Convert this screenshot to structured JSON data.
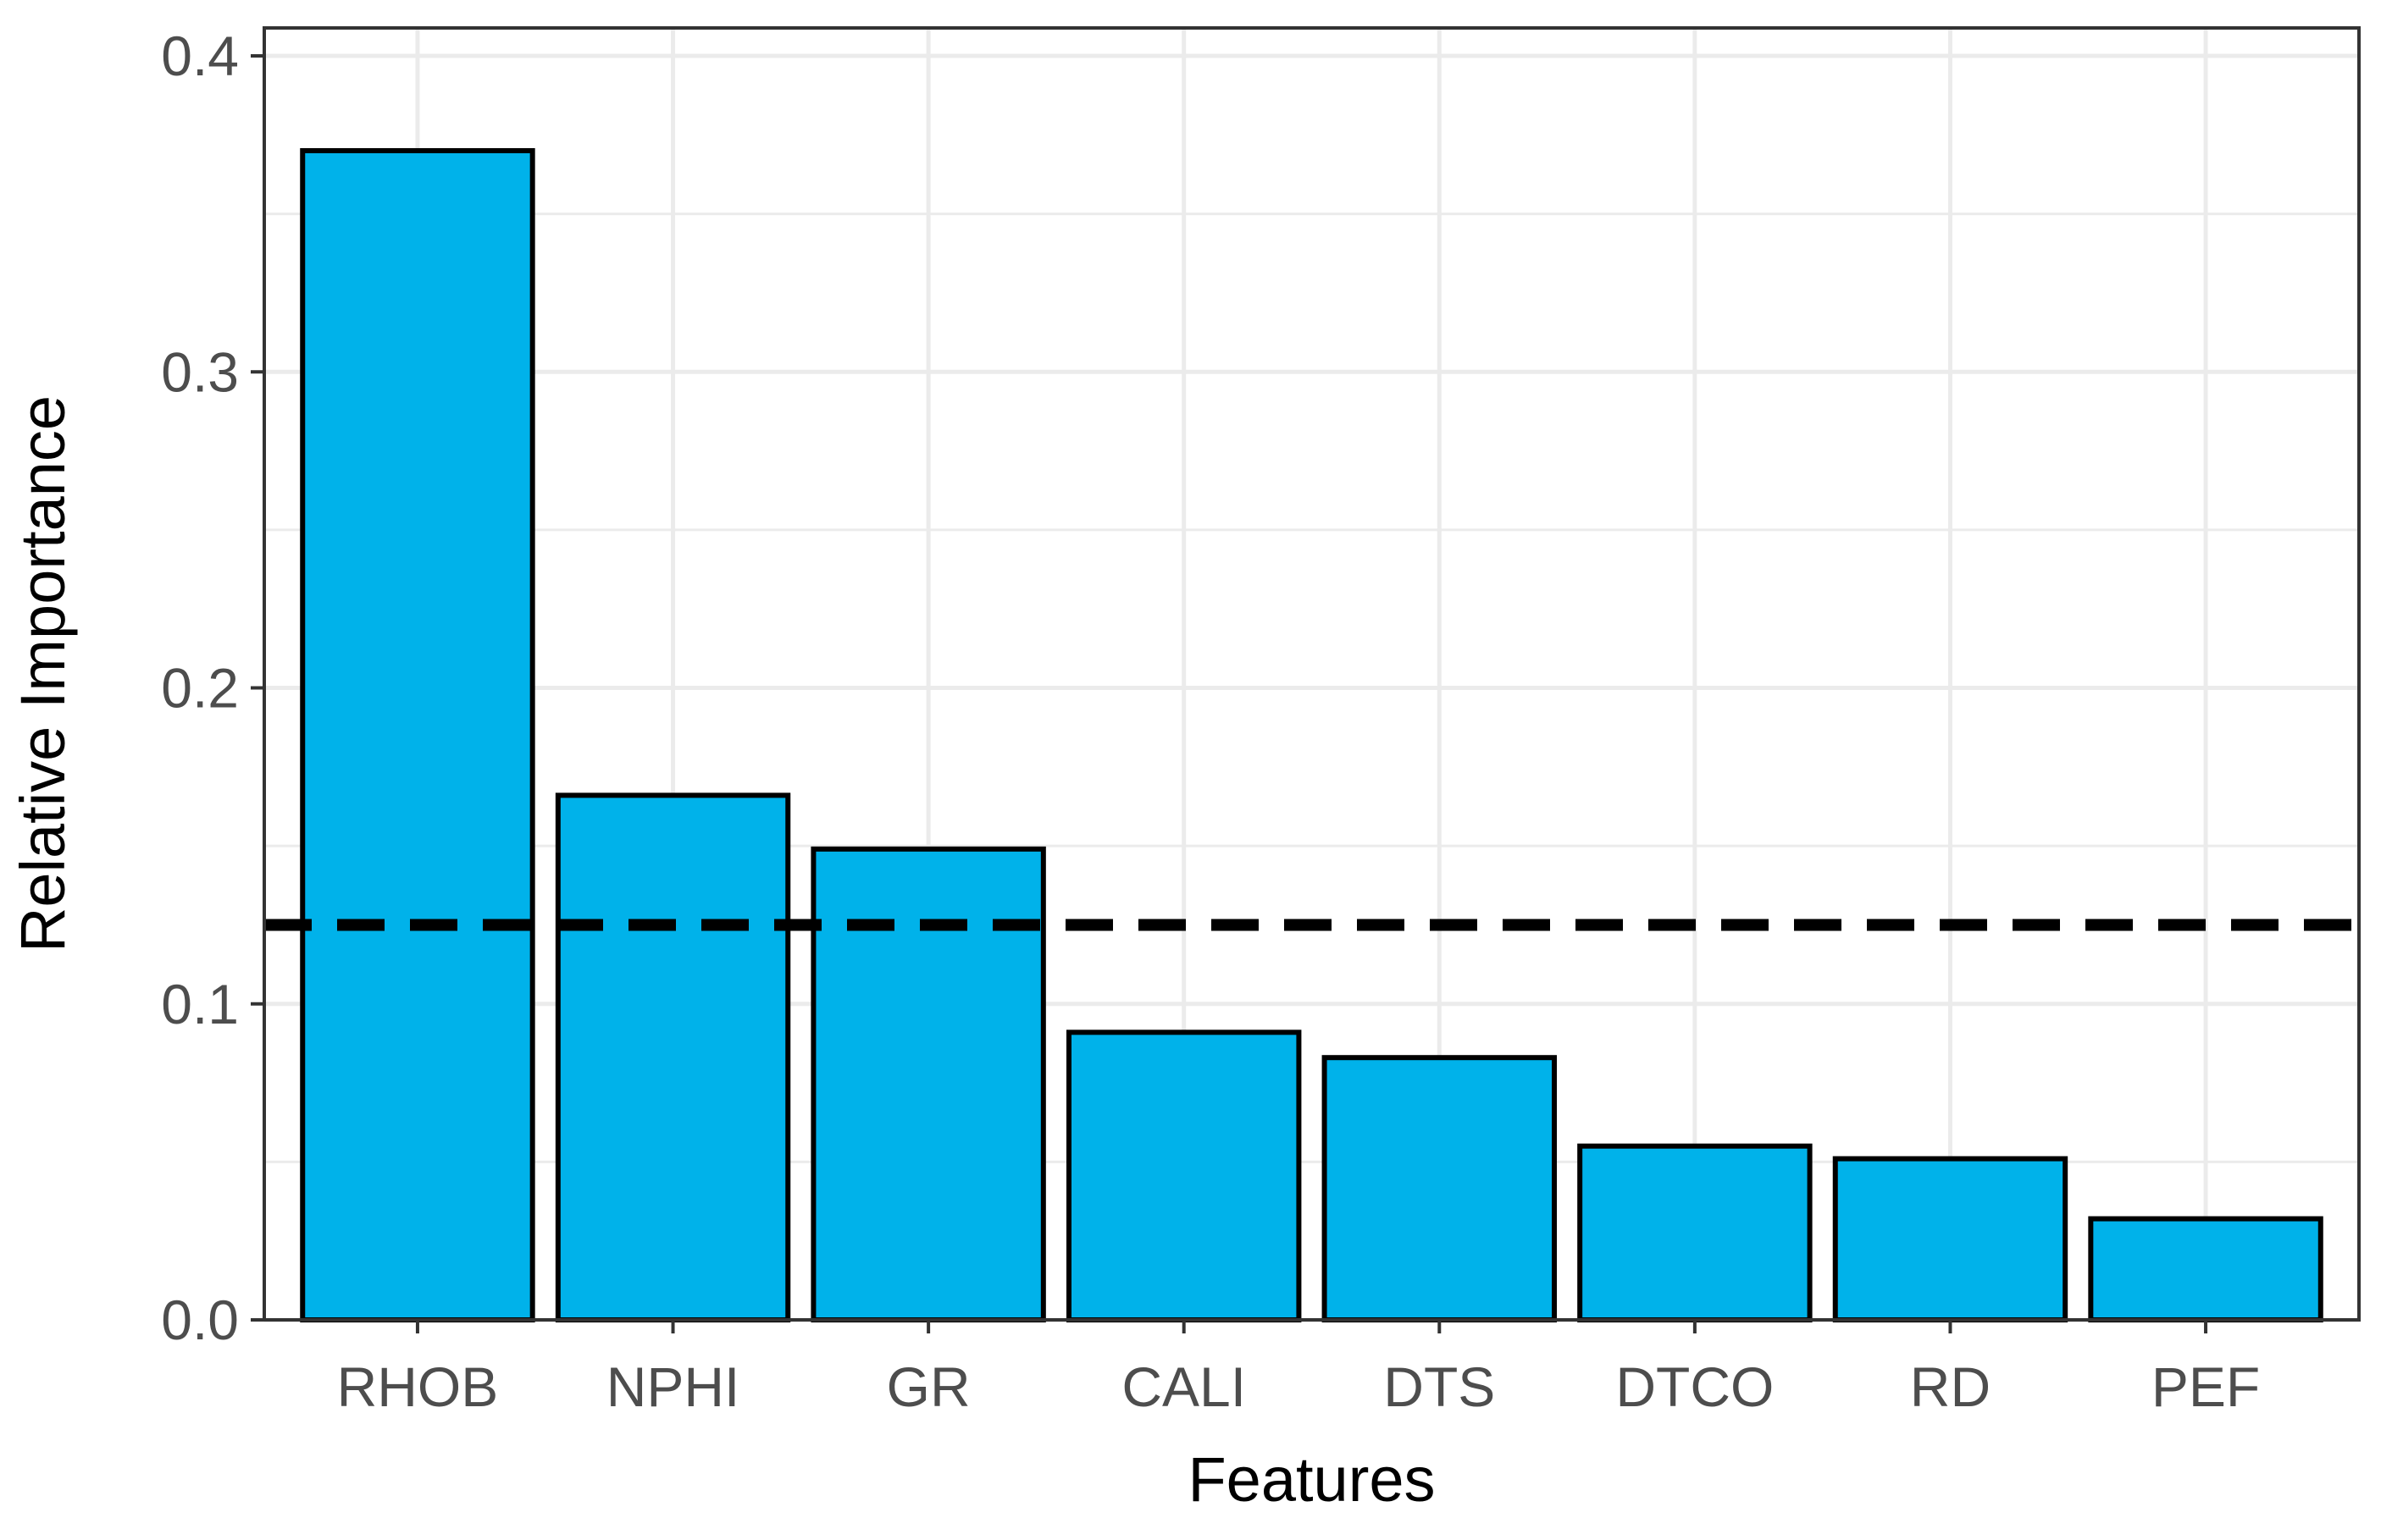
{
  "chart_data": {
    "type": "bar",
    "title": "",
    "xlabel": "Features",
    "ylabel": "Relative Importance",
    "categories": [
      "RHOB",
      "NPHI",
      "GR",
      "CALI",
      "DTS",
      "DTCO",
      "RD",
      "PEF"
    ],
    "values": [
      0.37,
      0.166,
      0.149,
      0.091,
      0.083,
      0.055,
      0.051,
      0.032
    ],
    "ylim": [
      0,
      0.4
    ],
    "yticks": [
      "0.0",
      "0.1",
      "0.2",
      "0.3",
      "0.4"
    ],
    "grid": true,
    "reference_line": {
      "y": 0.125,
      "style": "dashed"
    },
    "colors": {
      "bar_fill": "#00B2EA",
      "bar_stroke": "#000000",
      "grid": "#EBEBEB",
      "panel_border": "#333333",
      "tick_text": "#4D4D4D",
      "reference_line": "#000000"
    }
  }
}
